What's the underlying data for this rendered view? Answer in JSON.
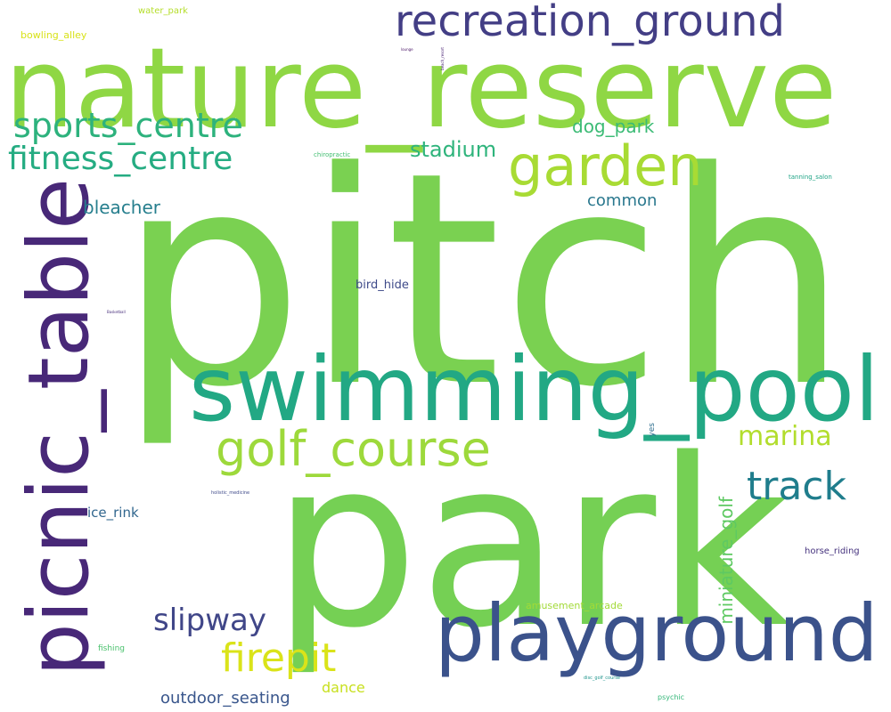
{
  "words": {
    "pitch": {
      "text": "pitch",
      "color": "#7ad151"
    },
    "park": {
      "text": "park",
      "color": "#75d054"
    },
    "nature_reserve": {
      "text": "nature_reserve",
      "color": "#8fd744"
    },
    "swimming_pool": {
      "text": "swimming_pool",
      "color": "#22a884"
    },
    "picnic_table": {
      "text": "picnic_table",
      "color": "#482878"
    },
    "playground": {
      "text": "playground",
      "color": "#3b528b"
    },
    "recreation_ground": {
      "text": "recreation_ground",
      "color": "#433e85"
    },
    "garden": {
      "text": "garden",
      "color": "#a8db34"
    },
    "golf_course": {
      "text": "golf_course",
      "color": "#9dd93b"
    },
    "track": {
      "text": "track",
      "color": "#1f7d8c"
    },
    "sports_centre": {
      "text": "sports_centre",
      "color": "#2db27d"
    },
    "fitness_centre": {
      "text": "fitness_centre",
      "color": "#25ac82"
    },
    "firepit": {
      "text": "firepit",
      "color": "#dae319"
    },
    "slipway": {
      "text": "slipway",
      "color": "#404688"
    },
    "marina": {
      "text": "marina",
      "color": "#b2dd2d"
    },
    "stadium": {
      "text": "stadium",
      "color": "#2fb47c"
    },
    "dog_park": {
      "text": "dog_park",
      "color": "#3bbb75"
    },
    "bleacher": {
      "text": "bleacher",
      "color": "#277f8e"
    },
    "common": {
      "text": "common",
      "color": "#2a788e"
    },
    "miniature_golf": {
      "text": "miniature_golf",
      "color": "#5ec962"
    },
    "outdoor_seating": {
      "text": "outdoor_seating",
      "color": "#39568c"
    },
    "ice_rink": {
      "text": "ice_rink",
      "color": "#31668e"
    },
    "bird_hide": {
      "text": "bird_hide",
      "color": "#3e4a89"
    },
    "dance": {
      "text": "dance",
      "color": "#c8e020"
    },
    "amusement_arcade": {
      "text": "amusement_arcade",
      "color": "#a2da37"
    },
    "horse_riding": {
      "text": "horse_riding",
      "color": "#46337e"
    },
    "bowling_alley": {
      "text": "bowling_alley",
      "color": "#d8e219"
    },
    "water_park": {
      "text": "water_park",
      "color": "#b5de2b"
    },
    "fishing": {
      "text": "fishing",
      "color": "#4ac16d"
    },
    "yes": {
      "text": "yes",
      "color": "#2e6e8e"
    },
    "psychic": {
      "text": "psychic",
      "color": "#35b779"
    },
    "chiropractic": {
      "text": "chiropractic",
      "color": "#42be71"
    },
    "tanning_salon": {
      "text": "tanning_salon",
      "color": "#20a486"
    },
    "holistic_medicine": {
      "text": "holistic_medicine",
      "color": "#3e4989"
    },
    "disc_golf_course": {
      "text": "disc_golf_course",
      "color": "#1f948c"
    },
    "Basketball": {
      "text": "Basketball",
      "color": "#472d7b"
    },
    "beach_resort": {
      "text": "beach_resort",
      "color": "#482173"
    },
    "lounge": {
      "text": "lounge",
      "color": "#471164"
    }
  }
}
